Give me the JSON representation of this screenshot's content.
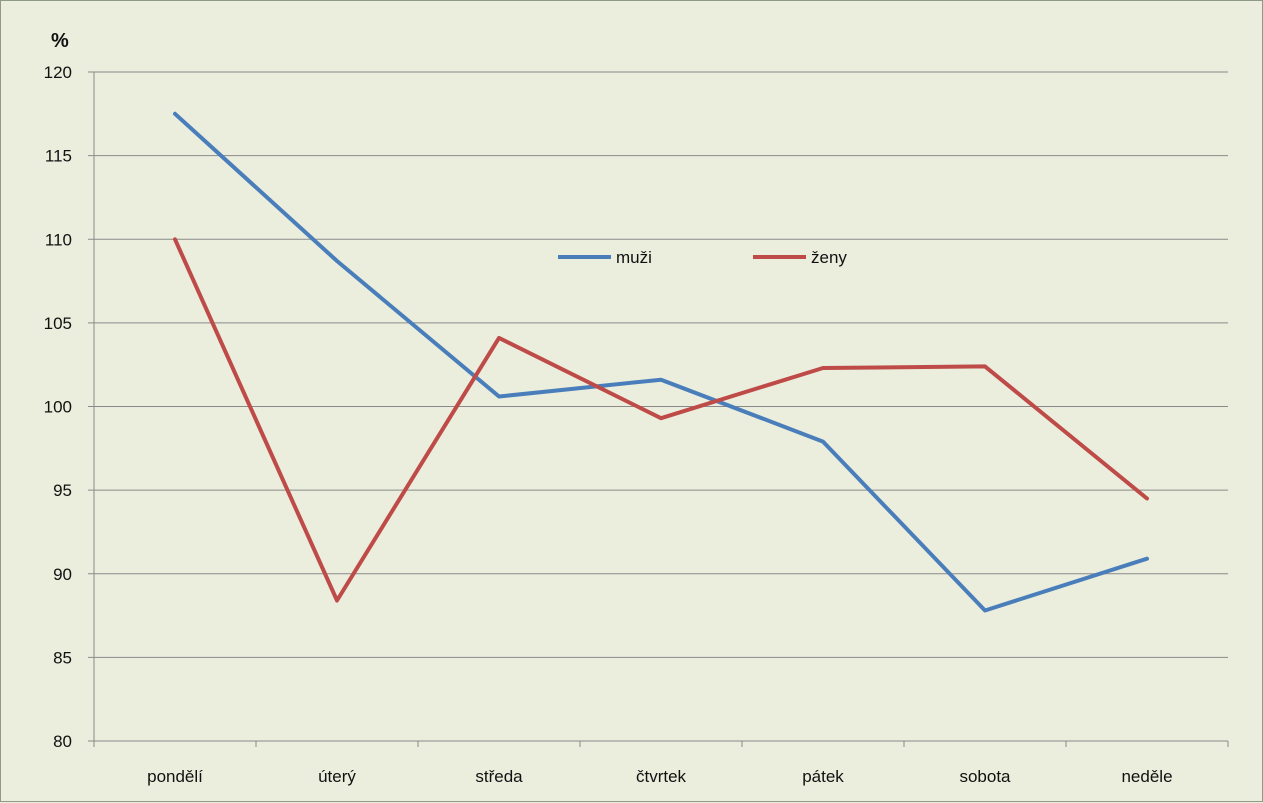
{
  "chart_data": {
    "type": "line",
    "ylabel": "%",
    "ylim": [
      80,
      120
    ],
    "yticks": [
      80,
      85,
      90,
      95,
      100,
      105,
      110,
      115,
      120
    ],
    "categories": [
      "pondělí",
      "úterý",
      "středa",
      "čtvrtek",
      "pátek",
      "sobota",
      "neděle"
    ],
    "grid": "horizontal",
    "legend_position": "top-center",
    "series": [
      {
        "name": "muži",
        "color": "#4a7ebb",
        "values": [
          117.5,
          108.7,
          100.6,
          101.6,
          97.9,
          87.8,
          90.9
        ]
      },
      {
        "name": "ženy",
        "color": "#be4b48",
        "values": [
          110.0,
          88.4,
          104.1,
          99.3,
          102.3,
          102.4,
          94.5
        ]
      }
    ]
  }
}
